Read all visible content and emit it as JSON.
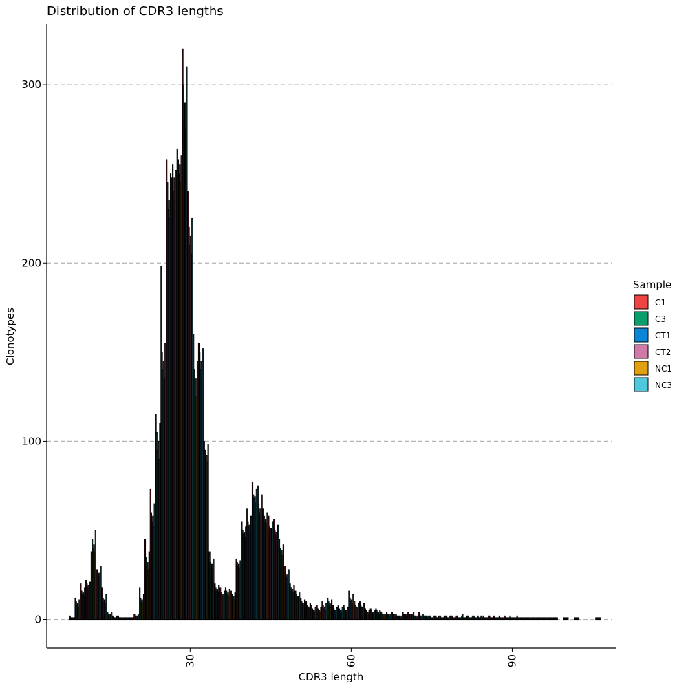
{
  "chart_data": {
    "type": "bar",
    "title": "Distribution of CDR3 lengths",
    "xlabel": "CDR3 length",
    "ylabel": "Clonotypes",
    "xlim": [
      3.3,
      109.3
    ],
    "ylim": [
      -16,
      334
    ],
    "x_ticks": [
      "30",
      "60",
      "90"
    ],
    "x_tick_values": [
      30,
      60,
      90
    ],
    "y_ticks": [
      "0",
      "100",
      "200",
      "300"
    ],
    "y_tick_values": [
      0,
      100,
      200,
      300
    ],
    "grid": "horizontal-dashed",
    "legend": {
      "title": "Sample",
      "position": "right",
      "entries": [
        {
          "name": "C1",
          "color": "#ee4444"
        },
        {
          "name": "C3",
          "color": "#0a9e6c"
        },
        {
          "name": "CT1",
          "color": "#0a86d6"
        },
        {
          "name": "CT2",
          "color": "#d07aa8"
        },
        {
          "name": "NC1",
          "color": "#e0a010"
        },
        {
          "name": "NC3",
          "color": "#50c8dc"
        }
      ]
    },
    "x": [
      8,
      9,
      10,
      11,
      12,
      13,
      14,
      15,
      16,
      17,
      18,
      19,
      20,
      21,
      22,
      23,
      24,
      25,
      26,
      27,
      28,
      29,
      30,
      31,
      32,
      33,
      34,
      35,
      36,
      37,
      38,
      39,
      40,
      41,
      42,
      43,
      44,
      45,
      46,
      47,
      48,
      49,
      50,
      51,
      52,
      53,
      54,
      55,
      56,
      57,
      58,
      59,
      60,
      61,
      62,
      63,
      64,
      65,
      66,
      67,
      68,
      69,
      70,
      71,
      72,
      73,
      74,
      75,
      76,
      77,
      78,
      79,
      80,
      81,
      82,
      83,
      84,
      85,
      86,
      87,
      88,
      89,
      90,
      91,
      92,
      93,
      94,
      95,
      96,
      97,
      98,
      100,
      102,
      106
    ],
    "series": [
      {
        "name": "C1",
        "values": [
          2,
          12,
          20,
          22,
          38,
          28,
          18,
          4,
          2,
          2,
          1,
          1,
          3,
          18,
          45,
          73,
          115,
          198,
          258,
          248,
          264,
          320,
          240,
          160,
          155,
          100,
          38,
          20,
          18,
          18,
          16,
          34,
          55,
          62,
          77,
          75,
          62,
          58,
          56,
          45,
          30,
          20,
          16,
          12,
          10,
          8,
          8,
          10,
          12,
          8,
          8,
          8,
          16,
          10,
          10,
          6,
          6,
          6,
          4,
          4,
          4,
          2,
          4,
          4,
          4,
          4,
          2,
          2,
          2,
          2,
          2,
          2,
          2,
          2,
          2,
          2,
          2,
          2,
          2,
          2,
          2,
          2,
          2,
          1,
          1,
          1,
          1,
          1,
          1,
          1,
          1,
          1,
          1,
          1
        ]
      },
      {
        "name": "C3",
        "values": [
          1,
          10,
          16,
          20,
          45,
          28,
          12,
          3,
          1,
          1,
          1,
          1,
          2,
          12,
          35,
          60,
          105,
          150,
          245,
          255,
          258,
          300,
          220,
          140,
          150,
          95,
          32,
          18,
          15,
          16,
          14,
          32,
          50,
          55,
          70,
          65,
          58,
          52,
          50,
          40,
          26,
          18,
          14,
          10,
          8,
          6,
          6,
          8,
          10,
          6,
          6,
          6,
          12,
          8,
          8,
          5,
          5,
          5,
          3,
          3,
          3,
          2,
          3,
          3,
          2,
          3,
          2,
          2,
          2,
          1,
          2,
          2,
          2,
          3,
          2,
          1,
          1,
          1,
          2,
          1,
          1,
          1,
          1,
          1,
          1,
          1,
          1,
          1,
          1,
          1,
          1,
          1,
          1,
          1
        ]
      },
      {
        "name": "CT1",
        "values": [
          1,
          8,
          14,
          18,
          40,
          25,
          10,
          2,
          1,
          1,
          1,
          1,
          2,
          10,
          30,
          55,
          95,
          140,
          230,
          240,
          250,
          280,
          210,
          130,
          140,
          90,
          30,
          16,
          14,
          14,
          12,
          30,
          48,
          52,
          68,
          60,
          55,
          50,
          48,
          38,
          24,
          16,
          12,
          9,
          7,
          5,
          5,
          6,
          8,
          5,
          5,
          5,
          10,
          7,
          7,
          4,
          4,
          4,
          3,
          3,
          3,
          2,
          3,
          3,
          2,
          2,
          2,
          1,
          1,
          1,
          1,
          1,
          1,
          1,
          1,
          2,
          1,
          1,
          1,
          1,
          1,
          1,
          1,
          2,
          1,
          1,
          1,
          1,
          1,
          1,
          1,
          1,
          1,
          1
        ]
      },
      {
        "name": "CT2",
        "values": [
          1,
          9,
          15,
          19,
          42,
          26,
          11,
          3,
          1,
          1,
          1,
          1,
          2,
          11,
          32,
          58,
          100,
          145,
          235,
          248,
          255,
          290,
          215,
          135,
          145,
          92,
          31,
          17,
          14,
          15,
          13,
          31,
          49,
          53,
          69,
          62,
          56,
          51,
          49,
          39,
          25,
          17,
          13,
          9,
          7,
          5,
          5,
          7,
          9,
          5,
          5,
          5,
          11,
          7,
          7,
          4,
          4,
          4,
          3,
          3,
          3,
          2,
          3,
          3,
          2,
          2,
          2,
          1,
          1,
          1,
          1,
          1,
          1,
          1,
          1,
          1,
          1,
          1,
          1,
          1,
          1,
          1,
          1,
          1,
          1,
          1,
          1,
          1,
          1,
          1,
          1,
          1,
          1,
          1
        ]
      },
      {
        "name": "NC1",
        "values": [
          1,
          7,
          13,
          17,
          38,
          24,
          9,
          2,
          1,
          1,
          1,
          1,
          2,
          9,
          28,
          52,
          90,
          135,
          225,
          235,
          245,
          275,
          205,
          125,
          135,
          88,
          29,
          15,
          13,
          13,
          11,
          29,
          46,
          50,
          66,
          58,
          54,
          48,
          46,
          36,
          23,
          15,
          11,
          8,
          6,
          4,
          4,
          5,
          7,
          4,
          4,
          4,
          9,
          6,
          6,
          3,
          3,
          3,
          2,
          2,
          2,
          1,
          2,
          2,
          1,
          2,
          1,
          1,
          1,
          1,
          1,
          1,
          1,
          1,
          1,
          1,
          2,
          1,
          1,
          1,
          1,
          1,
          1,
          1,
          1,
          1,
          1,
          1,
          1,
          1,
          1,
          1,
          1,
          1
        ]
      },
      {
        "name": "NC3",
        "values": [
          1,
          11,
          18,
          21,
          50,
          30,
          14,
          4,
          2,
          1,
          1,
          1,
          3,
          14,
          38,
          65,
          110,
          155,
          250,
          252,
          260,
          310,
          225,
          145,
          152,
          98,
          34,
          19,
          16,
          17,
          15,
          33,
          52,
          58,
          73,
          70,
          60,
          55,
          53,
          42,
          28,
          19,
          15,
          11,
          9,
          7,
          7,
          9,
          11,
          7,
          7,
          7,
          14,
          9,
          9,
          5,
          5,
          5,
          3,
          3,
          3,
          2,
          3,
          3,
          2,
          3,
          2,
          2,
          2,
          2,
          2,
          1,
          1,
          1,
          1,
          1,
          1,
          1,
          1,
          1,
          1,
          1,
          1,
          1,
          1,
          1,
          1,
          1,
          1,
          1,
          1,
          1,
          1,
          1
        ]
      }
    ]
  }
}
